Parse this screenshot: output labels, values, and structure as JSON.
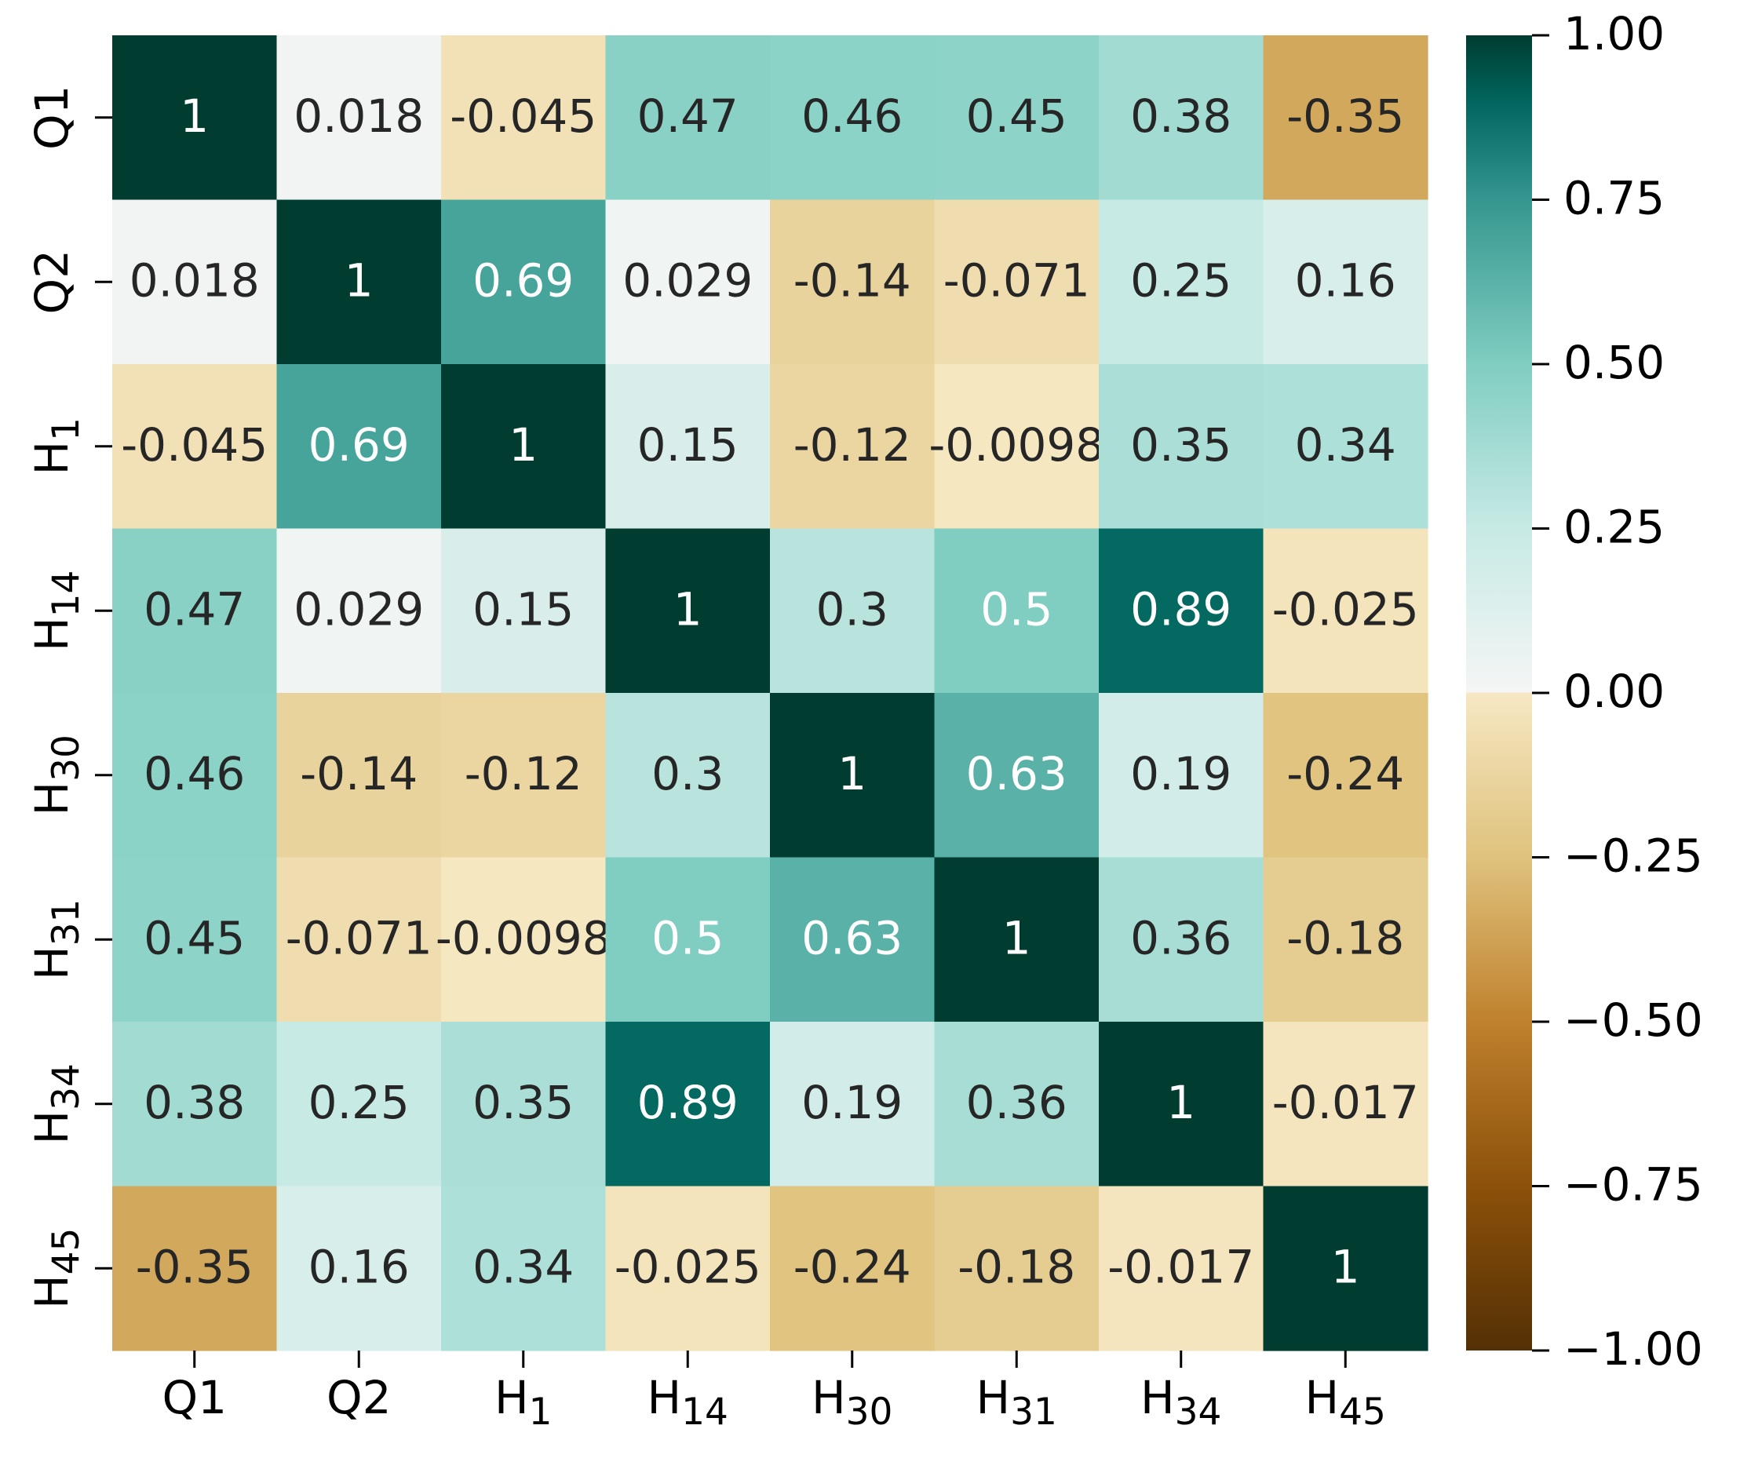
{
  "chart_data": {
    "type": "heatmap",
    "title": "",
    "xlabel": "",
    "ylabel": "",
    "labels": [
      {
        "id": "Q1",
        "base": "Q1",
        "sub": ""
      },
      {
        "id": "Q2",
        "base": "Q2",
        "sub": ""
      },
      {
        "id": "H1",
        "base": "H",
        "sub": "1"
      },
      {
        "id": "H14",
        "base": "H",
        "sub": "14"
      },
      {
        "id": "H30",
        "base": "H",
        "sub": "30"
      },
      {
        "id": "H31",
        "base": "H",
        "sub": "31"
      },
      {
        "id": "H34",
        "base": "H",
        "sub": "34"
      },
      {
        "id": "H45",
        "base": "H",
        "sub": "45"
      }
    ],
    "matrix": [
      [
        1,
        0.018,
        -0.045,
        0.47,
        0.46,
        0.45,
        0.38,
        -0.35
      ],
      [
        0.018,
        1,
        0.69,
        0.029,
        -0.14,
        -0.071,
        0.25,
        0.16
      ],
      [
        -0.045,
        0.69,
        1,
        0.15,
        -0.12,
        -0.0098,
        0.35,
        0.34
      ],
      [
        0.47,
        0.029,
        0.15,
        1,
        0.3,
        0.5,
        0.89,
        -0.025
      ],
      [
        0.46,
        -0.14,
        -0.12,
        0.3,
        1,
        0.63,
        0.19,
        -0.24
      ],
      [
        0.45,
        -0.071,
        -0.0098,
        0.5,
        0.63,
        1,
        0.36,
        -0.18
      ],
      [
        0.38,
        0.25,
        0.35,
        0.89,
        0.19,
        0.36,
        1,
        -0.017
      ],
      [
        -0.35,
        0.16,
        0.34,
        -0.025,
        -0.24,
        -0.18,
        -0.017,
        1
      ]
    ],
    "annotations": [
      [
        "1",
        "0.018",
        "-0.045",
        "0.47",
        "0.46",
        "0.45",
        "0.38",
        "-0.35"
      ],
      [
        "0.018",
        "1",
        "0.69",
        "0.029",
        "-0.14",
        "-0.071",
        "0.25",
        "0.16"
      ],
      [
        "-0.045",
        "0.69",
        "1",
        "0.15",
        "-0.12",
        "-0.0098",
        "0.35",
        "0.34"
      ],
      [
        "0.47",
        "0.029",
        "0.15",
        "1",
        "0.3",
        "0.5",
        "0.89",
        "-0.025"
      ],
      [
        "0.46",
        "-0.14",
        "-0.12",
        "0.3",
        "1",
        "0.63",
        "0.19",
        "-0.24"
      ],
      [
        "0.45",
        "-0.071",
        "-0.0098",
        "0.5",
        "0.63",
        "1",
        "0.36",
        "-0.18"
      ],
      [
        "0.38",
        "0.25",
        "0.35",
        "0.89",
        "0.19",
        "0.36",
        "1",
        "-0.017"
      ],
      [
        "-0.35",
        "0.16",
        "0.34",
        "-0.025",
        "-0.24",
        "-0.18",
        "-0.017",
        "1"
      ]
    ],
    "vmin": -1,
    "vmax": 1,
    "colormap": "BrBG",
    "colorbar_ticks": [
      {
        "value": 1.0,
        "label": "1.00"
      },
      {
        "value": 0.75,
        "label": "0.75"
      },
      {
        "value": 0.5,
        "label": "0.50"
      },
      {
        "value": 0.25,
        "label": "0.25"
      },
      {
        "value": 0.0,
        "label": "0.00"
      },
      {
        "value": -0.25,
        "label": "−0.25"
      },
      {
        "value": -0.5,
        "label": "−0.50"
      },
      {
        "value": -0.75,
        "label": "−0.75"
      },
      {
        "value": -1.0,
        "label": "−1.00"
      }
    ],
    "colormap_stops": [
      {
        "value": -1.0,
        "color": "#543005"
      },
      {
        "value": -0.75,
        "color": "#8c510a"
      },
      {
        "value": -0.5,
        "color": "#bf812d"
      },
      {
        "value": -0.25,
        "color": "#dfc27d"
      },
      {
        "value": 0.0,
        "color": "#f6e8c3"
      },
      {
        "value": 0.001,
        "color": "#f5f5f5"
      },
      {
        "value": 0.25,
        "color": "#c7eae5"
      },
      {
        "value": 0.5,
        "color": "#80cdc1"
      },
      {
        "value": 0.75,
        "color": "#35978f"
      },
      {
        "value": 0.9,
        "color": "#01665e"
      },
      {
        "value": 1.0,
        "color": "#003c30"
      }
    ],
    "text_colors": {
      "dark": "#262626",
      "light": "#ffffff"
    }
  }
}
